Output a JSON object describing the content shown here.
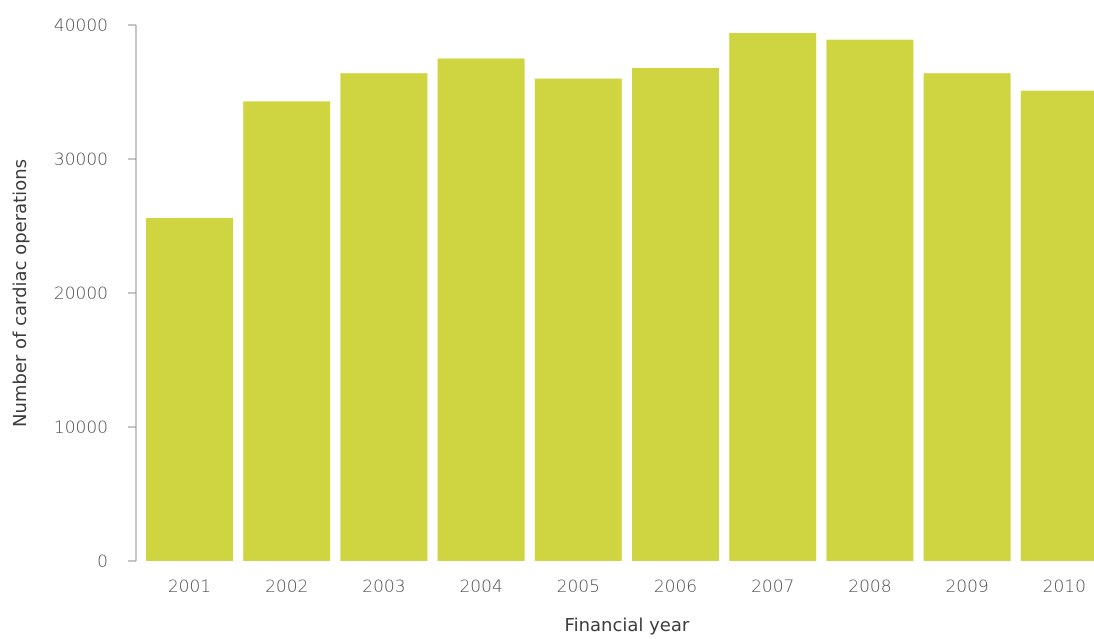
{
  "chart_data": {
    "type": "bar",
    "categories": [
      "2001",
      "2002",
      "2003",
      "2004",
      "2005",
      "2006",
      "2007",
      "2008",
      "2009",
      "2010"
    ],
    "values": [
      25600,
      34300,
      36400,
      37500,
      36000,
      36800,
      39400,
      38900,
      36400,
      35100
    ],
    "title": "",
    "xlabel": "Financial year",
    "ylabel": "Number of cardiac operations",
    "ylim": [
      0,
      40000
    ],
    "yticks": [
      0,
      10000,
      20000,
      30000,
      40000
    ],
    "ytick_labels": [
      "0",
      "10000",
      "20000",
      "30000",
      "40000"
    ],
    "grid": false,
    "legend": "none",
    "bar_color": "#cfd541"
  }
}
